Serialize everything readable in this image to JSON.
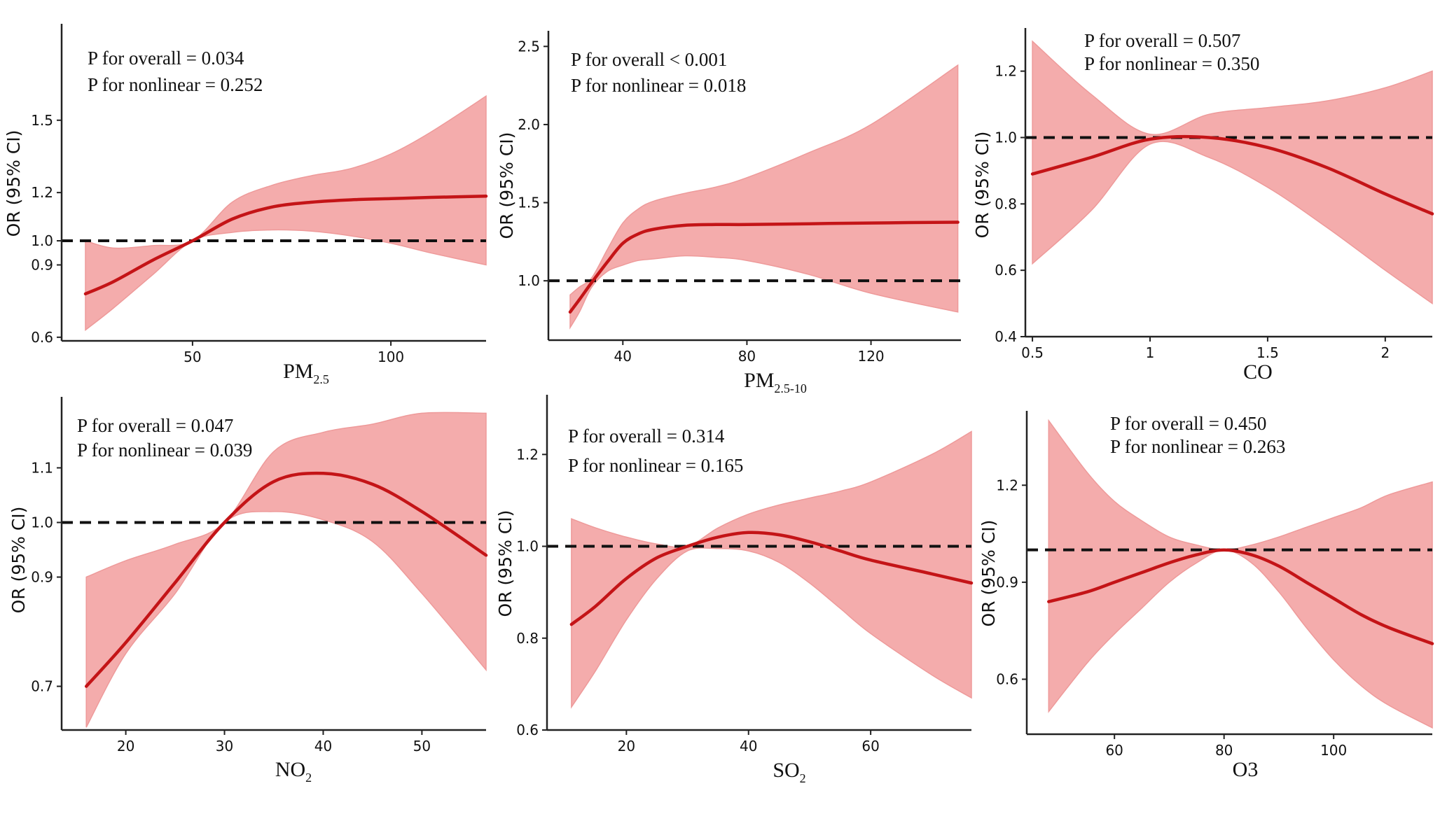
{
  "chart_data": [
    {
      "type": "area",
      "panel": "pm25",
      "ylabel": "OR (95% CI)",
      "xlabel": {
        "base": "PM",
        "sub": "2.5"
      },
      "annotations": [
        "P for overall = 0.034",
        "P for nonlinear = 0.252"
      ],
      "xlim": [
        17,
        124
      ],
      "ylim": [
        0.585,
        1.9
      ],
      "x_ticks": [
        50,
        100
      ],
      "y_ticks": [
        0.6,
        0.9,
        1.0,
        1.2,
        1.5
      ],
      "reference_line": 1.0,
      "series": [
        {
          "x": [
            23,
            30,
            40,
            50,
            60,
            70,
            80,
            90,
            100,
            110,
            124
          ],
          "estimate": [
            0.78,
            0.83,
            0.92,
            1.0,
            1.09,
            1.14,
            1.16,
            1.17,
            1.175,
            1.18,
            1.185
          ],
          "lower": [
            0.63,
            0.72,
            0.86,
            1.0,
            1.035,
            1.045,
            1.04,
            1.02,
            0.99,
            0.95,
            0.9
          ],
          "upper": [
            1.0,
            0.97,
            0.98,
            1.0,
            1.16,
            1.23,
            1.27,
            1.3,
            1.36,
            1.45,
            1.6
          ]
        }
      ]
    },
    {
      "type": "area",
      "panel": "pm25_10",
      "ylabel": "OR (95% CI)",
      "xlabel": {
        "base": "PM",
        "sub": "2.5-10"
      },
      "annotations": [
        "P for overall < 0.001",
        "P for nonlinear = 0.018"
      ],
      "xlim": [
        16,
        149
      ],
      "ylim": [
        0.62,
        2.6
      ],
      "x_ticks": [
        40,
        80,
        120
      ],
      "y_ticks": [
        1.0,
        1.5,
        2.0,
        2.5
      ],
      "reference_line": 1.0,
      "series": [
        {
          "x": [
            23,
            26,
            30,
            35,
            40,
            45,
            50,
            60,
            70,
            80,
            100,
            120,
            148
          ],
          "estimate": [
            0.8,
            0.88,
            0.99,
            1.12,
            1.24,
            1.3,
            1.33,
            1.355,
            1.36,
            1.36,
            1.365,
            1.37,
            1.375
          ],
          "lower": [
            0.7,
            0.8,
            0.96,
            1.06,
            1.1,
            1.13,
            1.14,
            1.16,
            1.15,
            1.13,
            1.04,
            0.92,
            0.8
          ],
          "upper": [
            0.91,
            0.96,
            1.02,
            1.2,
            1.37,
            1.46,
            1.51,
            1.56,
            1.6,
            1.66,
            1.82,
            2.0,
            2.38
          ]
        }
      ]
    },
    {
      "type": "area",
      "panel": "co",
      "ylabel": "OR (95% CI)",
      "xlabel": {
        "base": "CO",
        "sub": ""
      },
      "annotations": [
        "P for overall = 0.507",
        "P for nonlinear = 0.350"
      ],
      "xlim": [
        0.47,
        2.2
      ],
      "ylim": [
        0.4,
        1.33
      ],
      "x_ticks": [
        0.5,
        1.0,
        1.5,
        2.0
      ],
      "y_ticks": [
        0.4,
        0.6,
        0.8,
        1.0,
        1.2
      ],
      "reference_line": 1.0,
      "series": [
        {
          "x": [
            0.5,
            0.75,
            1.0,
            1.25,
            1.5,
            1.75,
            2.0,
            2.2
          ],
          "estimate": [
            0.89,
            0.94,
            0.995,
            1.0,
            0.97,
            0.91,
            0.83,
            0.77
          ],
          "lower": [
            0.62,
            0.78,
            0.98,
            0.94,
            0.85,
            0.73,
            0.6,
            0.5
          ],
          "upper": [
            1.29,
            1.13,
            1.01,
            1.07,
            1.09,
            1.11,
            1.15,
            1.2
          ]
        }
      ]
    },
    {
      "type": "area",
      "panel": "no2",
      "ylabel": "OR (95% CI)",
      "xlabel": {
        "base": "NO",
        "sub": "2"
      },
      "annotations": [
        "P for overall = 0.047",
        "P for nonlinear = 0.039"
      ],
      "xlim": [
        13.5,
        56.5
      ],
      "ylim": [
        0.62,
        1.23
      ],
      "x_ticks": [
        20,
        30,
        40,
        50
      ],
      "y_ticks": [
        0.7,
        0.9,
        1.0,
        1.1
      ],
      "reference_line": 1.0,
      "series": [
        {
          "x": [
            16,
            20,
            25,
            30,
            35,
            40,
            45,
            50,
            56.5
          ],
          "estimate": [
            0.7,
            0.78,
            0.89,
            1.0,
            1.075,
            1.09,
            1.07,
            1.02,
            0.94
          ],
          "lower": [
            0.625,
            0.76,
            0.87,
            1.0,
            1.02,
            1.005,
            0.965,
            0.87,
            0.73
          ],
          "upper": [
            0.9,
            0.93,
            0.96,
            1.0,
            1.13,
            1.165,
            1.18,
            1.2,
            1.2
          ]
        }
      ]
    },
    {
      "type": "area",
      "panel": "so2",
      "ylabel": "OR (95% CI)",
      "xlabel": {
        "base": "SO",
        "sub": "2"
      },
      "annotations": [
        "P for overall = 0.314",
        "P for nonlinear = 0.165"
      ],
      "xlim": [
        7,
        76.5
      ],
      "ylim": [
        0.6,
        1.33
      ],
      "x_ticks": [
        20,
        40,
        60
      ],
      "y_ticks": [
        0.6,
        0.8,
        1.0,
        1.2
      ],
      "reference_line": 1.0,
      "series": [
        {
          "x": [
            11,
            15,
            20,
            25,
            30,
            35,
            40,
            45,
            50,
            55,
            60,
            70,
            76.5
          ],
          "estimate": [
            0.83,
            0.87,
            0.93,
            0.975,
            1.0,
            1.02,
            1.03,
            1.025,
            1.01,
            0.99,
            0.97,
            0.94,
            0.92
          ],
          "lower": [
            0.65,
            0.73,
            0.84,
            0.93,
            0.99,
            0.995,
            0.99,
            0.965,
            0.92,
            0.865,
            0.81,
            0.72,
            0.67
          ],
          "upper": [
            1.06,
            1.04,
            1.02,
            1.005,
            1.0,
            1.04,
            1.07,
            1.09,
            1.105,
            1.12,
            1.14,
            1.2,
            1.25
          ]
        }
      ]
    },
    {
      "type": "area",
      "panel": "o3",
      "ylabel": "OR (95% CI)",
      "xlabel": {
        "base": "O3",
        "sub": ""
      },
      "annotations": [
        "P for overall = 0.450",
        "P for nonlinear = 0.263"
      ],
      "xlim": [
        44,
        118
      ],
      "ylim": [
        0.43,
        1.43
      ],
      "x_ticks": [
        60,
        80,
        100
      ],
      "y_ticks": [
        0.6,
        0.9,
        1.2
      ],
      "reference_line": 1.0,
      "series": [
        {
          "x": [
            48,
            55,
            60,
            65,
            70,
            75,
            80,
            85,
            90,
            95,
            100,
            105,
            110,
            118
          ],
          "estimate": [
            0.84,
            0.87,
            0.9,
            0.93,
            0.96,
            0.985,
            1.0,
            0.985,
            0.95,
            0.9,
            0.85,
            0.8,
            0.76,
            0.71
          ],
          "lower": [
            0.5,
            0.65,
            0.74,
            0.82,
            0.9,
            0.96,
            1.0,
            0.96,
            0.87,
            0.76,
            0.66,
            0.58,
            0.52,
            0.45
          ],
          "upper": [
            1.4,
            1.24,
            1.15,
            1.09,
            1.04,
            1.015,
            1.0,
            1.015,
            1.04,
            1.07,
            1.1,
            1.13,
            1.17,
            1.21
          ]
        }
      ]
    }
  ],
  "colors": {
    "band": "#f4acac",
    "band_edge": "#ee9a9a",
    "curve": "#c41417",
    "reference": "#111111",
    "axis": "#222222"
  }
}
